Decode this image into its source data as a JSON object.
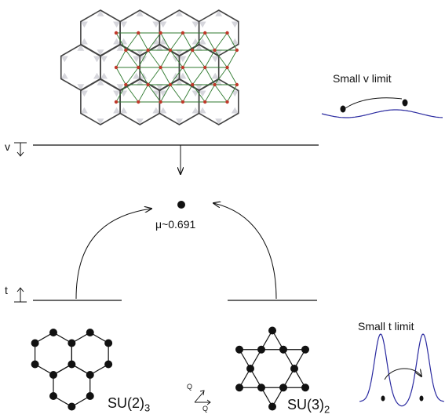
{
  "labels": {
    "mu": "μ~0.691",
    "v": "v",
    "t": "t",
    "small_v_limit": "Small v limit",
    "small_t_limit": "Small t limit",
    "su2_base": "SU(2)",
    "su2_sub": "3",
    "su3_base": "SU(3)",
    "su3_sub": "2",
    "q_top": "Q",
    "q_bottom": "Q"
  },
  "colors": {
    "lattice": "#444444",
    "shade": "#d6d6dc",
    "triangle": "#2f7a2f",
    "site": "#c0392b",
    "wave": "#2a2aa0",
    "ink": "#111111"
  }
}
